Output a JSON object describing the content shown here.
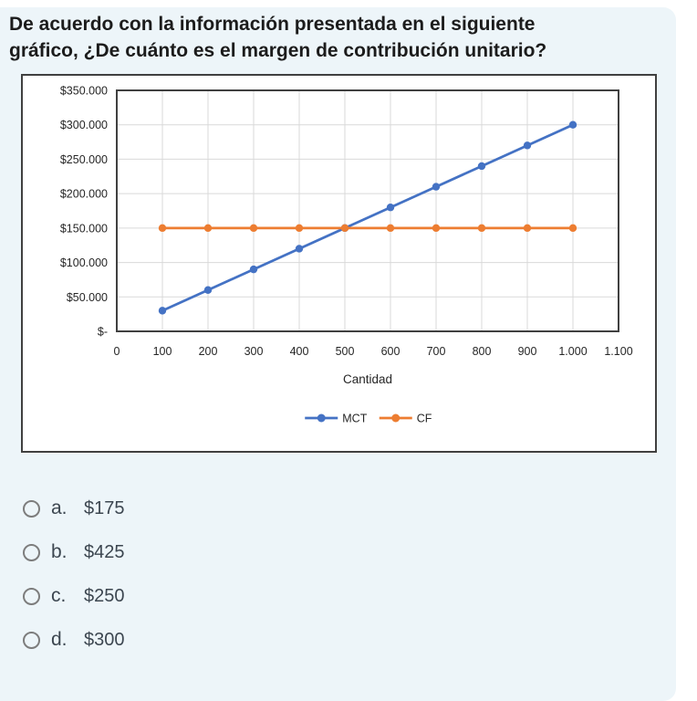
{
  "page": {
    "background": "#ffffff",
    "panel_background": "#edf5f9"
  },
  "question": {
    "lines": [
      "De acuerdo con la información presentada en el siguiente",
      "gráfico, ¿De cuánto es el margen de contribución unitario?"
    ]
  },
  "options": [
    {
      "letter": "a.",
      "label": "$175"
    },
    {
      "letter": "b.",
      "label": "$425"
    },
    {
      "letter": "c.",
      "label": "$250"
    },
    {
      "letter": "d.",
      "label": "$300"
    }
  ],
  "chart_data": {
    "type": "line",
    "x": [
      100,
      200,
      300,
      400,
      500,
      600,
      700,
      800,
      900,
      1000
    ],
    "series": [
      {
        "name": "MCT",
        "color": "#4472C4",
        "values": [
          30000,
          60000,
          90000,
          120000,
          150000,
          180000,
          210000,
          240000,
          270000,
          300000
        ]
      },
      {
        "name": "CF",
        "color": "#ED7D31",
        "values": [
          150000,
          150000,
          150000,
          150000,
          150000,
          150000,
          150000,
          150000,
          150000,
          150000
        ]
      }
    ],
    "title": "",
    "xlabel": "Cantidad",
    "ylabel": "",
    "xlim": [
      0,
      1100
    ],
    "ylim": [
      0,
      350000
    ],
    "x_tick_values": [
      0,
      100,
      200,
      300,
      400,
      500,
      600,
      700,
      800,
      900,
      1000,
      1100
    ],
    "x_ticks": [
      "0",
      "100",
      "200",
      "300",
      "400",
      "500",
      "600",
      "700",
      "800",
      "900",
      "1.000",
      "1.100"
    ],
    "y_tick_values": [
      0,
      50000,
      100000,
      150000,
      200000,
      250000,
      300000,
      350000
    ],
    "y_ticks": [
      "$-",
      "$50.000",
      "$100.000",
      "$150.000",
      "$200.000",
      "$250.000",
      "$300.000",
      "$350.000"
    ],
    "grid": true,
    "legend_position": "bottom",
    "colors": {
      "grid": "#d9d9d9",
      "plot_border": "#404040",
      "text": "#262626"
    }
  }
}
